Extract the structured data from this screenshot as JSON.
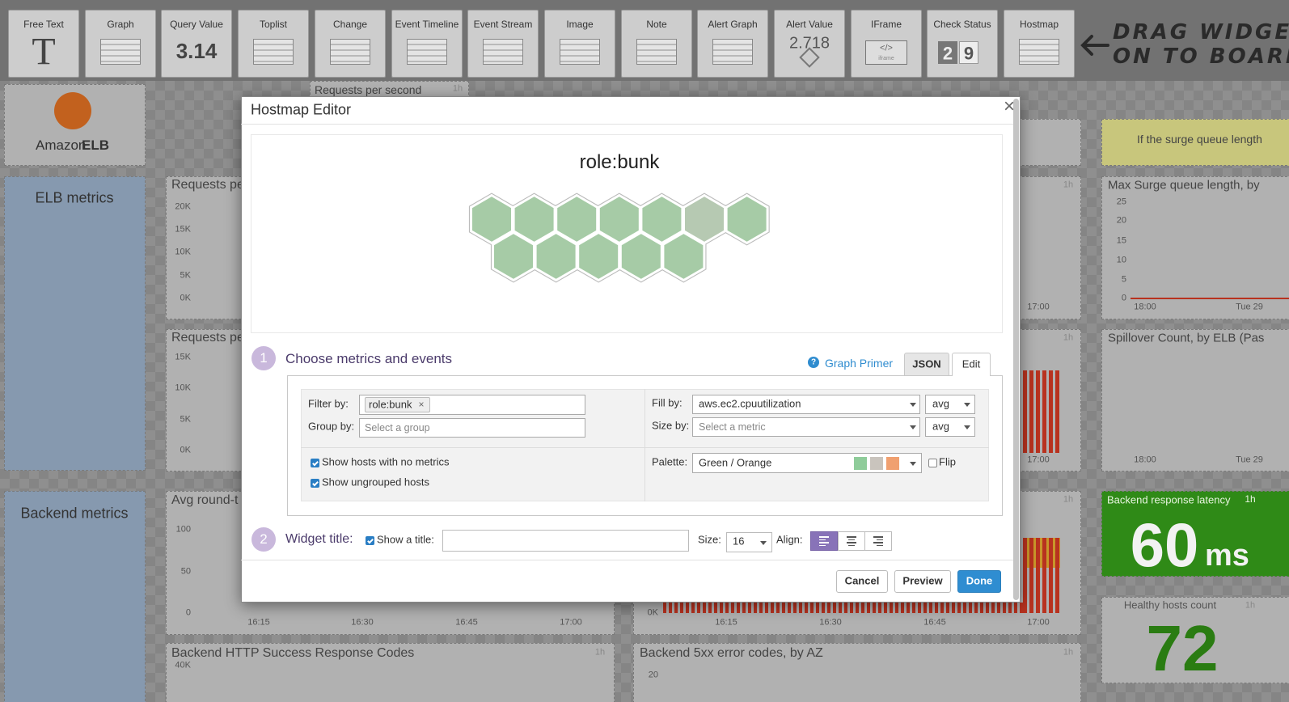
{
  "toolbar": {
    "widgets": [
      {
        "label": "Free Text",
        "icon": "T"
      },
      {
        "label": "Graph"
      },
      {
        "label": "Query Value",
        "icon": "3.14"
      },
      {
        "label": "Toplist"
      },
      {
        "label": "Change"
      },
      {
        "label": "Event Timeline"
      },
      {
        "label": "Event Stream"
      },
      {
        "label": "Image"
      },
      {
        "label": "Note"
      },
      {
        "label": "Alert Graph"
      },
      {
        "label": "Alert Value",
        "icon": "2.718"
      },
      {
        "label": "IFrame",
        "icon": "</>",
        "sub": "iframe"
      },
      {
        "label": "Check Status",
        "icon": [
          "2",
          "9"
        ]
      },
      {
        "label": "Hostmap"
      }
    ],
    "hint": [
      "DRAG WIDGET",
      "ON TO BOARD"
    ]
  },
  "dashboard": {
    "logo": {
      "name": "Amazon",
      "bold": "ELB"
    },
    "sections": [
      "ELB metrics",
      "Backend metrics"
    ],
    "widgets": [
      {
        "title": "Requests per second",
        "timeframe": "1h"
      },
      {
        "title": "Requests pe",
        "yticks": [
          "20K",
          "15K",
          "10K",
          "5K",
          "0K"
        ]
      },
      {
        "title": "Requests pe",
        "yticks": [
          "15K",
          "10K",
          "5K",
          "0K"
        ]
      },
      {
        "title": "Avg round-t",
        "yticks": [
          "100",
          "50",
          "0"
        ],
        "xticks": [
          "16:15",
          "16:30",
          "16:45",
          "17:00"
        ]
      },
      {
        "title": "Backend HTTP Success Response Codes",
        "timeframe": "1h",
        "yticks": [
          "40K"
        ]
      },
      {
        "title": "Backend 5xx error codes, by AZ",
        "timeframe": "1h",
        "yticks": [
          "20"
        ]
      },
      {
        "timeframe": "1h",
        "xticks": [
          "17:00"
        ]
      },
      {
        "timeframe": "1h",
        "xticks": [
          "17:00"
        ]
      },
      {
        "timeframe": "1h",
        "yticks": [
          "0K"
        ],
        "xticks": [
          "16:15",
          "16:30",
          "16:45",
          "17:00"
        ]
      },
      {
        "note": "If the surge queue length"
      },
      {
        "title": "Max Surge queue length, by",
        "yticks": [
          "25",
          "20",
          "15",
          "10",
          "5",
          "0"
        ],
        "xticks": [
          "18:00",
          "Tue 29"
        ]
      },
      {
        "title": "Spillover Count, by ELB (Pas",
        "xticks": [
          "18:00",
          "Tue 29"
        ]
      },
      {
        "title": "Backend response latency",
        "timeframe": "1h",
        "value": "60",
        "unit": "ms"
      },
      {
        "title": "Healthy hosts count",
        "timeframe": "1h",
        "value": "72"
      }
    ]
  },
  "modal": {
    "title": "Hostmap Editor",
    "close": "×",
    "preview_title": "role:bunk",
    "step1": {
      "number": "1",
      "title": "Choose metrics and events",
      "help_icon": "?",
      "help": "Graph Primer",
      "tabs": [
        "JSON",
        "Edit"
      ],
      "filter_label": "Filter by:",
      "filter_tag": "role:bunk",
      "tag_remove": "×",
      "group_label": "Group by:",
      "group_placeholder": "Select a group",
      "fill_label": "Fill by:",
      "fill_metric": "aws.ec2.cpuutilization",
      "fill_agg": "avg",
      "size_label": "Size by:",
      "size_placeholder": "Select a metric",
      "size_agg": "avg",
      "options": [
        "Show hosts with no metrics",
        "Show ungrouped hosts"
      ],
      "palette_label": "Palette:",
      "palette": "Green / Orange",
      "flip": "Flip"
    },
    "step2": {
      "number": "2",
      "title": "Widget title:",
      "show_title": "Show a title:",
      "size_label": "Size:",
      "size": "16",
      "align_label": "Align:"
    },
    "buttons": [
      "Cancel",
      "Preview",
      "Done"
    ]
  }
}
